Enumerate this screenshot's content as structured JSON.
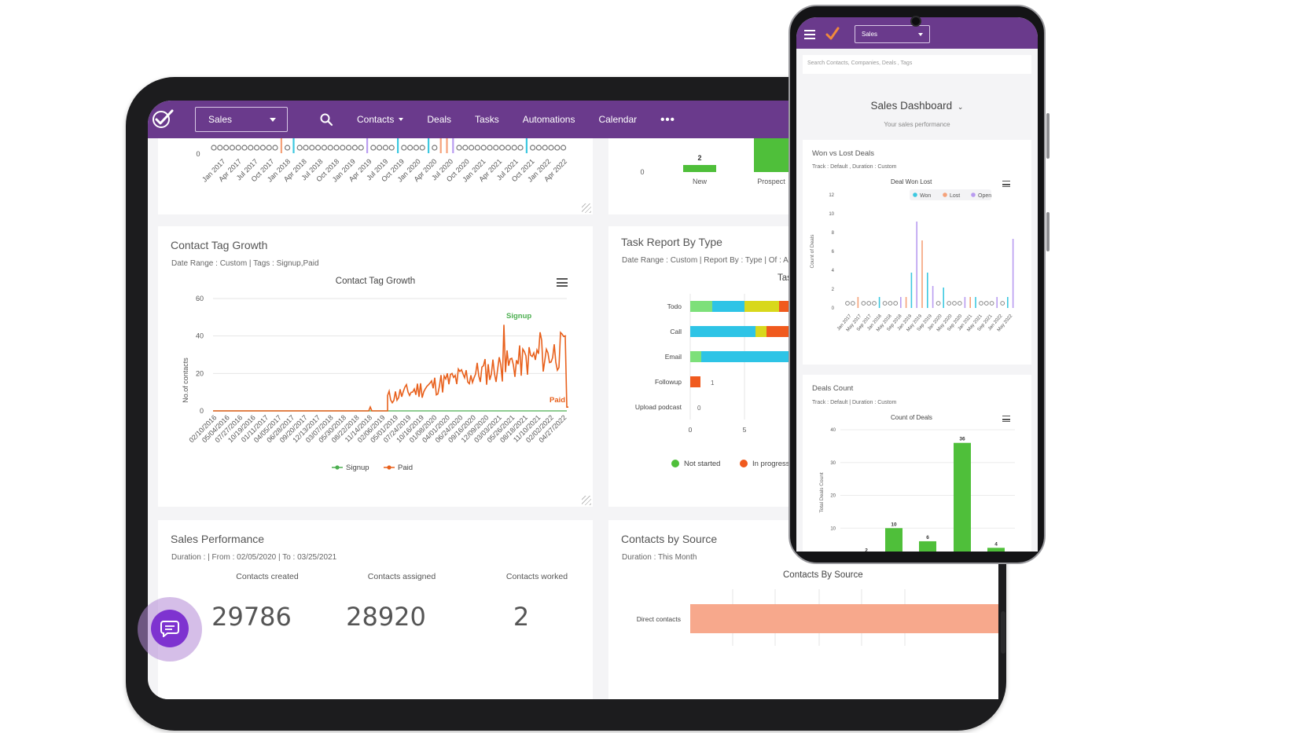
{
  "tablet": {
    "nav": {
      "selected_pipeline": "Sales",
      "items": [
        "Contacts",
        "Deals",
        "Tasks",
        "Automations",
        "Calendar"
      ],
      "more": "•••"
    },
    "top_left_partial": {
      "zero_label": "0",
      "month_labels": [
        "Jan 2017",
        "Apr 2017",
        "Jul 2017",
        "Oct 2017",
        "Jan 2018",
        "Apr 2018",
        "Jul 2018",
        "Oct 2018",
        "Jan 2019",
        "Apr 2019",
        "Jul 2019",
        "Oct 2019",
        "Jan 2020",
        "Apr 2020",
        "Jul 2020",
        "Oct 2020",
        "Jan 2021",
        "Apr 2021",
        "Jul 2021",
        "Oct 2021",
        "Jan 2022",
        "Apr 2022"
      ]
    },
    "top_right_partial": {
      "zero_label": "0",
      "bar_label": "2",
      "categories": [
        "New",
        "Prospect"
      ]
    },
    "contact_tag_growth": {
      "title": "Contact Tag Growth",
      "subtitle": "Date Range : Custom | Tags : Signup,Paid",
      "chart_title": "Contact Tag Growth",
      "ylabel": "No.of contacts",
      "y_ticks": [
        "60",
        "40",
        "20",
        "0"
      ],
      "x_ticks": [
        "02/10/2016",
        "05/04/2016",
        "07/27/2016",
        "10/19/2016",
        "01/11/2017",
        "04/05/2017",
        "06/28/2017",
        "09/20/2017",
        "12/13/2017",
        "03/07/2018",
        "05/30/2018",
        "08/22/2018",
        "11/14/2018",
        "02/06/2019",
        "05/01/2019",
        "07/24/2019",
        "10/16/2019",
        "01/08/2020",
        "04/01/2020",
        "06/24/2020",
        "09/16/2020",
        "12/09/2020",
        "03/03/2021",
        "05/26/2021",
        "08/18/2021",
        "11/10/2021",
        "02/02/2022",
        "04/27/2022"
      ],
      "series_labels": {
        "signup": "Signup",
        "paid": "Paid"
      },
      "legend": [
        "Signup",
        "Paid"
      ],
      "colors": {
        "signup": "#4caf50",
        "paid": "#e8601c"
      }
    },
    "task_report": {
      "title": "Task Report By Type",
      "subtitle": "Date Range : Custom | Report By : Type | Of : All T",
      "chart_title_partial": "Task",
      "categories": [
        "Todo",
        "Call",
        "Email",
        "Followup",
        "Upload podcast"
      ],
      "inline_labels": {
        "followup": "1",
        "upload": "0"
      },
      "x_ticks": [
        "0",
        "5"
      ],
      "legend": [
        "Not started",
        "In progress"
      ],
      "colors": {
        "green": "#7de07a",
        "cyan": "#2ec4e6",
        "yellow": "#d8d81c",
        "orange": "#f05a1e"
      }
    },
    "sales_performance": {
      "title": "Sales Performance",
      "subtitle": "Duration : | From : 02/05/2020 | To : 03/25/2021",
      "stats": [
        {
          "label": "Contacts created",
          "value": "29786"
        },
        {
          "label": "Contacts assigned",
          "value": "28920"
        },
        {
          "label": "Contacts worked",
          "value": "2"
        }
      ]
    },
    "contacts_by_source": {
      "title": "Contacts by Source",
      "subtitle": "Duration : This Month",
      "chart_title": "Contacts By Source",
      "categories": [
        "Direct contacts"
      ],
      "color": "#f7a88c"
    }
  },
  "phone": {
    "selected_pipeline": "Sales",
    "search_placeholder": "Search Contacts, Companies, Deals , Tags",
    "dashboard_title": "Sales Dashboard",
    "dashboard_subtitle": "Your sales performance",
    "won_lost": {
      "title": "Won vs Lost Deals",
      "subtitle": "Track : Default , Duration : Custom",
      "chart_title": "Deal Won Lost",
      "legend": [
        "Won",
        "Lost",
        "Open"
      ],
      "ylabel": "Count of Deals",
      "y_ticks": [
        "12",
        "10",
        "8",
        "6",
        "4",
        "2",
        "0"
      ],
      "x_ticks": [
        "Jan 2017",
        "May 2017",
        "Sep 2017",
        "Jan 2018",
        "May 2018",
        "Sep 2018",
        "Jan 2019",
        "May 2019",
        "Sep 2019",
        "Jan 2020",
        "May 2020",
        "Sep 2020",
        "Jan 2021",
        "May 2021",
        "Sep 2021",
        "Jan 2022",
        "May 2022"
      ],
      "colors": {
        "won": "#3cc8e0",
        "lost": "#f5a27a",
        "open": "#b99cf0"
      }
    },
    "deals_count": {
      "title": "Deals Count",
      "subtitle": "Track : Default | Duration : Custom",
      "chart_title": "Count of Deals",
      "ylabel": "Total Deals Count",
      "y_ticks": [
        "40",
        "30",
        "20",
        "10"
      ],
      "bar_labels": [
        "2",
        "10",
        "6",
        "36",
        "4"
      ],
      "color": "#4fbf3a"
    }
  }
}
